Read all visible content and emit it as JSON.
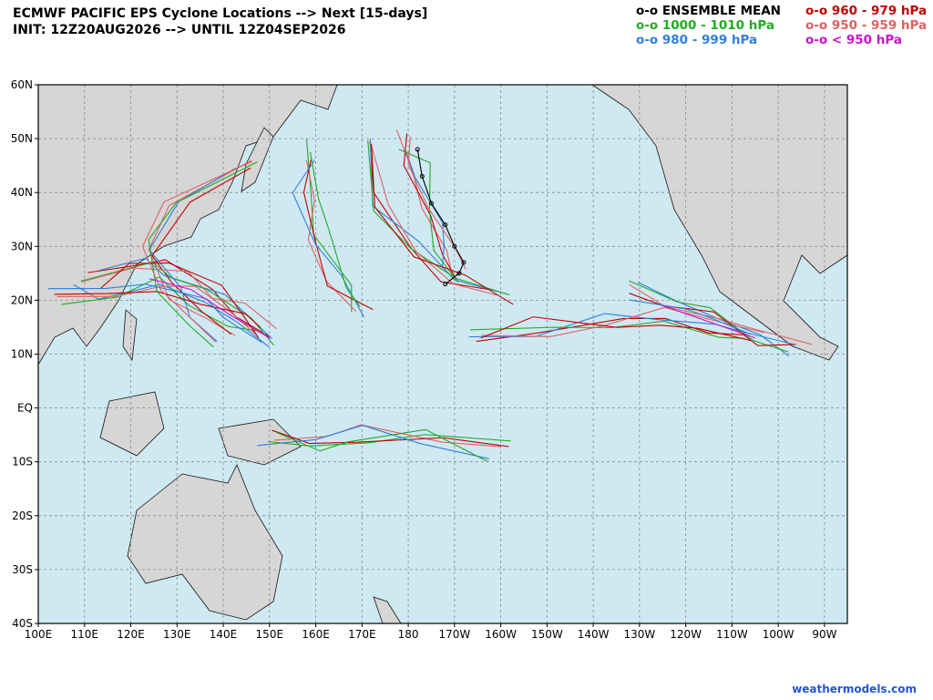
{
  "header": {
    "title": "ECMWF PACIFIC EPS Cyclone Locations --> Next [15-days]",
    "subtitle": "INIT: 12Z20AUG2026 --> UNTIL 12Z04SEP2026"
  },
  "legend": [
    {
      "label": "o-o ENSEMBLE MEAN",
      "color": "#000000"
    },
    {
      "label": "o-o 960 - 979 hPa",
      "color": "#c00000"
    },
    {
      "label": "o-o 1000 - 1010 hPa",
      "color": "#22aa22"
    },
    {
      "label": "o-o 950 - 959 hPa",
      "color": "#e06060"
    },
    {
      "label": "o-o 980 - 999 hPa",
      "color": "#2f7fdc"
    },
    {
      "label": "o-o < 950 hPa",
      "color": "#cc11cc"
    }
  ],
  "map": {
    "lon_labels": [
      "100E",
      "110E",
      "120E",
      "130E",
      "140E",
      "150E",
      "160E",
      "170E",
      "180",
      "170W",
      "160W",
      "150W",
      "140W",
      "130W",
      "120W",
      "110W",
      "100W",
      "90W"
    ],
    "lat_labels": [
      "60N",
      "50N",
      "40N",
      "30N",
      "20N",
      "10N",
      "EQ",
      "10S",
      "20S",
      "30S",
      "40S"
    ]
  },
  "footer": {
    "credit": "weathermodels.com"
  }
}
